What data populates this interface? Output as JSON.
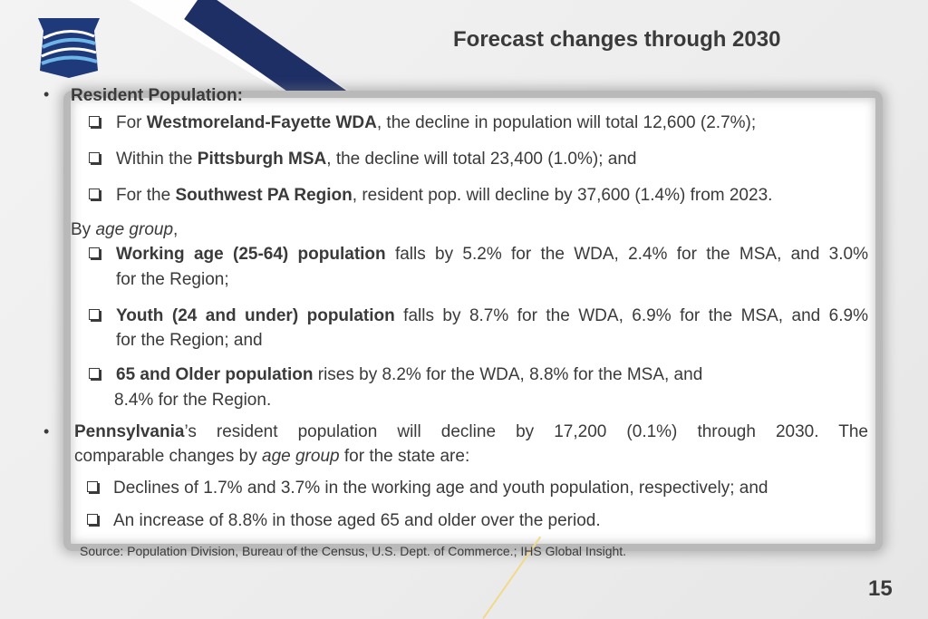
{
  "slide": {
    "title": "Forecast changes through 2030",
    "page_number": "15",
    "source": "Source: Population Division, Bureau of the Census, U.S. Dept. of Commerce.;  IHS Global Insight."
  },
  "logo": {
    "icon": "pennsylvania-keystone-icon",
    "colors": [
      "#1e3a7a",
      "#2d7fc1"
    ]
  },
  "resident": {
    "heading": "Resident Population:",
    "items": [
      {
        "pre": "For ",
        "bold": "Westmoreland-Fayette WDA",
        "post": ", the decline in population will total 12,600 (2.7%);"
      },
      {
        "pre": "Within the ",
        "bold": "Pittsburgh MSA",
        "post": ", the decline will total 23,400 (1.0%); and"
      },
      {
        "pre": "For the ",
        "bold": "Southwest PA Region",
        "post": ", resident pop. will decline by 37,600 (1.4%) from 2023."
      }
    ]
  },
  "age": {
    "intro_pre": "By ",
    "intro_italic": "age group",
    "intro_post": ",",
    "items": [
      {
        "bold": "Working age (25-64) population",
        "line1": " falls by 5.2% for the WDA, 2.4% for the MSA, and 3.0%",
        "line2": "for the Region;"
      },
      {
        "bold": "Youth (24 and under) population",
        "line1": " falls by 8.7% for the WDA, 6.9% for the MSA, and 6.9%",
        "line2": "for the Region; and"
      },
      {
        "bold": "65 and Older population",
        "line1": " rises by 8.2% for the WDA, 8.8% for the MSA, and",
        "line2": "8.4% for the Region."
      }
    ]
  },
  "pennsylvania": {
    "bold": "Pennsylvania",
    "line1": "’s resident population will decline by 17,200 (0.1%) through 2030. The",
    "line2_pre": "comparable changes by ",
    "line2_italic": "age group",
    "line2_post": " for the state are:",
    "items": [
      "Declines of 1.7% and 3.7% in the working age and youth population, respectively; and",
      "An increase of 8.8% in those aged 65 and older over the period."
    ]
  },
  "colors": {
    "navy": "#1e2f66",
    "text": "#3a3a3a",
    "frame": "#b9b9b9"
  }
}
